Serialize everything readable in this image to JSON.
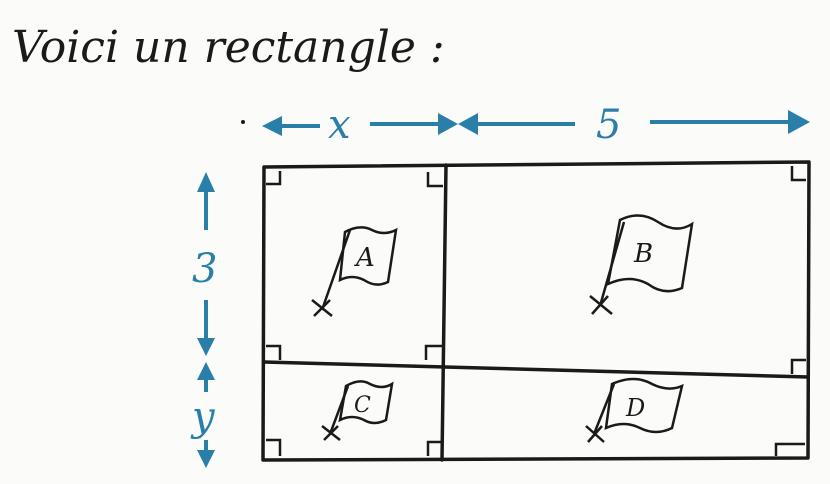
{
  "title": "Voici un rectangle :",
  "dimensions": {
    "top_left": "x",
    "top_right": "5",
    "left_top": "3",
    "left_bottom": "y"
  },
  "regions": [
    {
      "id": "A",
      "label": "A"
    },
    {
      "id": "B",
      "label": "B"
    },
    {
      "id": "C",
      "label": "C"
    },
    {
      "id": "D",
      "label": "D"
    }
  ],
  "colors": {
    "ink": "#1a1a1a",
    "dimension_blue": "#2a7fa8",
    "paper": "#fbfbf9"
  }
}
